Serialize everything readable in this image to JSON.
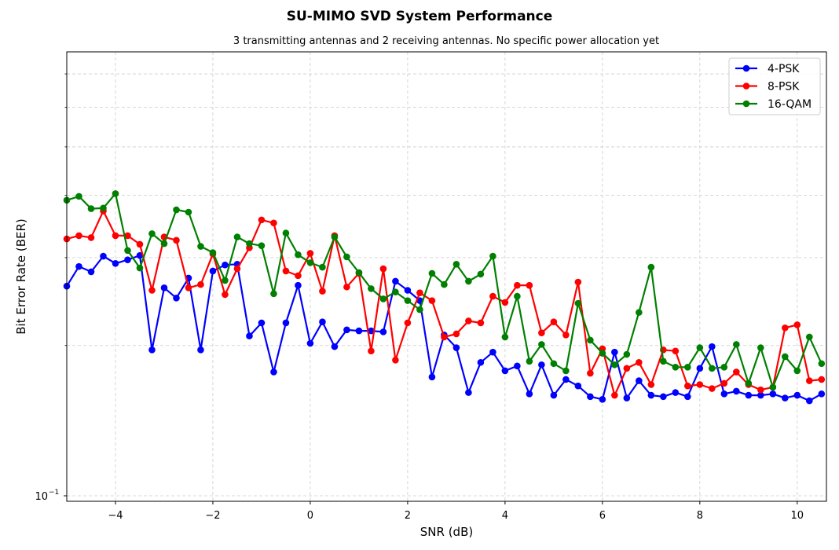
{
  "chart_data": {
    "type": "line",
    "title": "SU-MIMO SVD System Performance",
    "subtitle": "3 transmitting antennas and 2 receiving antennas. No specific power allocation yet",
    "xlabel": "SNR (dB)",
    "ylabel": "Bit Error Rate (BER)",
    "y_scale": "log",
    "xlim": [
      -5,
      10.6
    ],
    "ylim": [
      0.0975,
      0.775
    ],
    "grid": true,
    "legend_position": "top-right",
    "xticks": [
      -4,
      -2,
      0,
      2,
      4,
      6,
      8,
      10
    ],
    "xtick_labels": [
      "−4",
      "−2",
      "0",
      "2",
      "4",
      "6",
      "8",
      "10"
    ],
    "ytick_major": [
      0.1
    ],
    "ytick_major_labels": [
      "10",
      "−1"
    ],
    "ytick_minor": [
      0.2,
      0.3,
      0.4,
      0.5,
      0.6,
      0.7
    ],
    "x": [
      -5,
      -4.75,
      -4.5,
      -4.25,
      -4,
      -3.75,
      -3.5,
      -3.25,
      -3,
      -2.75,
      -2.5,
      -2.25,
      -2,
      -1.75,
      -1.5,
      -1.25,
      -1,
      -0.75,
      -0.5,
      -0.25,
      0,
      0.25,
      0.5,
      0.75,
      1,
      1.25,
      1.5,
      1.75,
      2,
      2.25,
      2.5,
      2.75,
      3,
      3.25,
      3.5,
      3.75,
      4,
      4.25,
      4.5,
      4.75,
      5,
      5.25,
      5.5,
      5.75,
      6,
      6.25,
      6.5,
      6.75,
      7,
      7.25,
      7.5,
      7.75,
      8,
      8.25,
      8.5,
      8.75,
      9,
      9.25,
      9.5,
      9.75,
      10,
      10.25,
      10.5
    ],
    "series": [
      {
        "name": "4-PSK",
        "color": "#0000ff",
        "values": [
          0.263,
          0.288,
          0.281,
          0.302,
          0.292,
          0.297,
          0.303,
          0.196,
          0.261,
          0.249,
          0.273,
          0.196,
          0.282,
          0.29,
          0.291,
          0.209,
          0.222,
          0.177,
          0.222,
          0.264,
          0.202,
          0.223,
          0.199,
          0.215,
          0.214,
          0.214,
          0.213,
          0.269,
          0.258,
          0.246,
          0.173,
          0.21,
          0.198,
          0.161,
          0.185,
          0.194,
          0.178,
          0.182,
          0.16,
          0.183,
          0.159,
          0.171,
          0.166,
          0.158,
          0.156,
          0.194,
          0.157,
          0.17,
          0.159,
          0.158,
          0.161,
          0.158,
          0.18,
          0.199,
          0.16,
          0.162,
          0.159,
          0.159,
          0.16,
          0.157,
          0.159,
          0.155,
          0.16
        ]
      },
      {
        "name": "8-PSK",
        "color": "#ff0000",
        "values": [
          0.327,
          0.332,
          0.329,
          0.372,
          0.332,
          0.332,
          0.319,
          0.258,
          0.33,
          0.325,
          0.261,
          0.265,
          0.305,
          0.253,
          0.285,
          0.314,
          0.357,
          0.352,
          0.282,
          0.276,
          0.306,
          0.257,
          0.332,
          0.262,
          0.279,
          0.195,
          0.285,
          0.187,
          0.222,
          0.255,
          0.246,
          0.208,
          0.211,
          0.224,
          0.222,
          0.251,
          0.244,
          0.264,
          0.264,
          0.212,
          0.223,
          0.21,
          0.268,
          0.176,
          0.197,
          0.159,
          0.18,
          0.185,
          0.167,
          0.196,
          0.195,
          0.166,
          0.167,
          0.164,
          0.168,
          0.177,
          0.167,
          0.163,
          0.165,
          0.217,
          0.22,
          0.17,
          0.171
        ]
      },
      {
        "name": "16-QAM",
        "color": "#008000",
        "values": [
          0.391,
          0.398,
          0.376,
          0.377,
          0.403,
          0.31,
          0.286,
          0.335,
          0.32,
          0.374,
          0.37,
          0.316,
          0.307,
          0.27,
          0.33,
          0.32,
          0.317,
          0.254,
          0.336,
          0.304,
          0.293,
          0.287,
          0.33,
          0.301,
          0.28,
          0.26,
          0.248,
          0.256,
          0.246,
          0.236,
          0.279,
          0.265,
          0.291,
          0.269,
          0.278,
          0.302,
          0.208,
          0.251,
          0.186,
          0.201,
          0.184,
          0.178,
          0.243,
          0.205,
          0.193,
          0.183,
          0.192,
          0.233,
          0.287,
          0.186,
          0.181,
          0.181,
          0.198,
          0.18,
          0.181,
          0.201,
          0.168,
          0.198,
          0.165,
          0.19,
          0.178,
          0.208,
          0.184
        ]
      }
    ]
  }
}
